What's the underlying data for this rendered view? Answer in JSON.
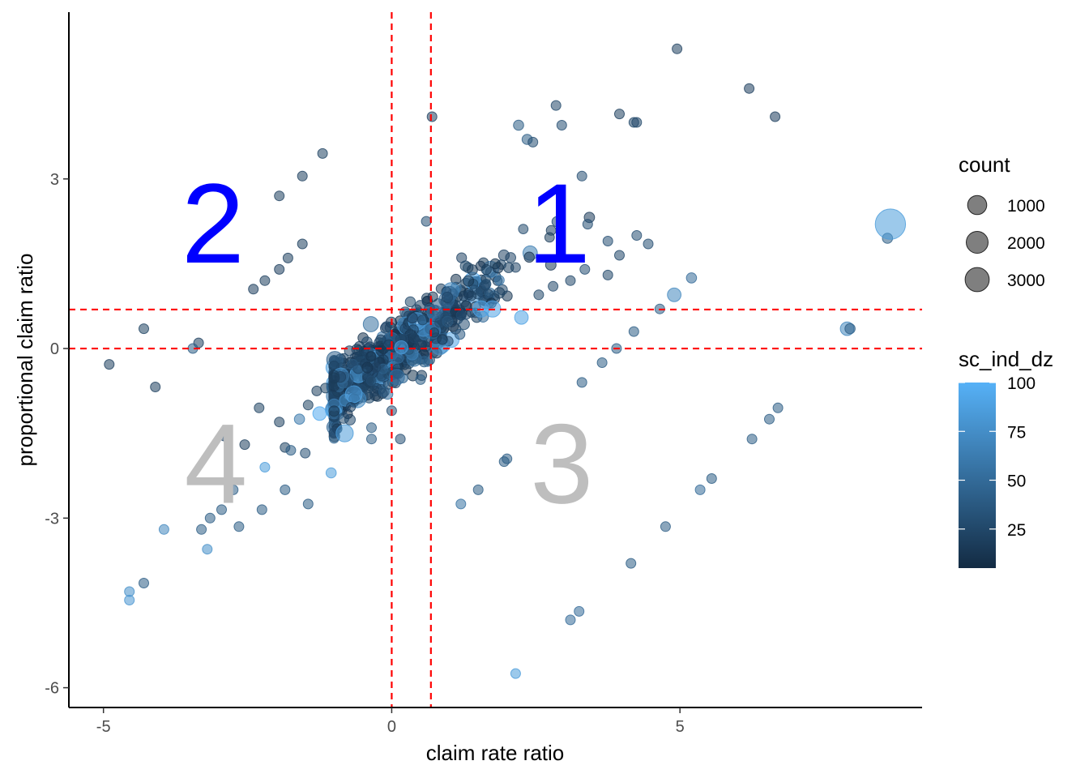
{
  "chart_data": {
    "type": "scatter",
    "xlabel": "claim rate ratio",
    "ylabel": "proportional claim ratio",
    "xlim": [
      -5.6,
      9.2
    ],
    "ylim": [
      -6.35,
      5.95
    ],
    "x_ticks": [
      {
        "value": -5,
        "label": "-5"
      },
      {
        "value": 0,
        "label": "0"
      },
      {
        "value": 5,
        "label": "5"
      }
    ],
    "y_ticks": [
      {
        "value": 3,
        "label": "3"
      },
      {
        "value": 0,
        "label": "0"
      },
      {
        "value": -3,
        "label": "-3"
      },
      {
        "value": -6,
        "label": "-6"
      }
    ],
    "grid": false,
    "reference_lines": {
      "vertical": [
        0,
        0.68
      ],
      "horizontal": [
        0,
        0.69
      ],
      "color": "#ff0000",
      "style": "dashed"
    },
    "quadrant_labels": [
      {
        "text": "1",
        "x": 2.9,
        "y": 2.05,
        "color": "#0000ff"
      },
      {
        "text": "2",
        "x": -3.1,
        "y": 2.05,
        "color": "#0000ff"
      },
      {
        "text": "3",
        "x": 2.95,
        "y": -2.2,
        "color": "#bebebe"
      },
      {
        "text": "4",
        "x": -3.05,
        "y": -2.2,
        "color": "#bebebe"
      }
    ],
    "legend": {
      "position": "right",
      "size_title": "count",
      "size_entries": [
        {
          "label": "1000",
          "value": 1000
        },
        {
          "label": "2000",
          "value": 2000
        },
        {
          "label": "3000",
          "value": 3000
        }
      ],
      "color_title": "sc_ind_dz",
      "color_range": [
        5,
        100
      ],
      "color_low": "#132b43",
      "color_high": "#56b1f7",
      "color_ticks": [
        {
          "value": 100,
          "label": "100"
        },
        {
          "value": 75,
          "label": "75"
        },
        {
          "value": 50,
          "label": "50"
        },
        {
          "value": 25,
          "label": "25"
        }
      ]
    },
    "point_alpha": 0.55,
    "points": [
      [
        4.95,
        5.3,
        20,
        120
      ],
      [
        6.2,
        4.6,
        18,
        120
      ],
      [
        6.65,
        4.1,
        18,
        120
      ],
      [
        -4.9,
        -0.28,
        20,
        120
      ],
      [
        -4.1,
        -0.68,
        20,
        120
      ],
      [
        -4.3,
        0.35,
        22,
        120
      ],
      [
        -3.35,
        0.1,
        20,
        120
      ],
      [
        -3.45,
        0.0,
        40,
        120
      ],
      [
        -1.55,
        3.05,
        20,
        120
      ],
      [
        -1.2,
        3.45,
        22,
        120
      ],
      [
        -1.95,
        2.7,
        20,
        120
      ],
      [
        -1.55,
        1.85,
        20,
        120
      ],
      [
        -1.8,
        1.6,
        20,
        120
      ],
      [
        -1.95,
        1.4,
        18,
        120
      ],
      [
        -2.4,
        1.05,
        18,
        120
      ],
      [
        -2.2,
        1.2,
        20,
        120
      ],
      [
        -2.9,
        -1.55,
        18,
        120
      ],
      [
        -2.3,
        -1.05,
        22,
        120
      ],
      [
        -2.55,
        -1.7,
        20,
        120
      ],
      [
        -1.95,
        -1.3,
        20,
        120
      ],
      [
        -1.85,
        -1.75,
        22,
        120
      ],
      [
        -1.75,
        -1.8,
        40,
        120
      ],
      [
        -1.5,
        -1.85,
        30,
        120
      ],
      [
        -1.45,
        -1.0,
        22,
        120
      ],
      [
        -1.3,
        -0.75,
        20,
        120
      ],
      [
        -1.15,
        -0.7,
        22,
        120
      ],
      [
        -1.45,
        -2.75,
        40,
        120
      ],
      [
        -1.85,
        -2.5,
        40,
        120
      ],
      [
        -2.2,
        -2.1,
        85,
        120
      ],
      [
        -1.05,
        -2.2,
        85,
        150
      ],
      [
        -1.25,
        -1.15,
        95,
        400
      ],
      [
        -1.6,
        -1.25,
        60,
        150
      ],
      [
        -2.25,
        -2.85,
        40,
        120
      ],
      [
        -2.75,
        -2.5,
        40,
        120
      ],
      [
        -2.65,
        -3.15,
        40,
        120
      ],
      [
        -2.95,
        -2.85,
        40,
        120
      ],
      [
        -3.15,
        -3.0,
        40,
        120
      ],
      [
        -3.3,
        -3.2,
        40,
        120
      ],
      [
        -3.2,
        -3.55,
        75,
        120
      ],
      [
        -3.95,
        -3.2,
        70,
        120
      ],
      [
        -4.3,
        -4.15,
        40,
        120
      ],
      [
        -4.55,
        -4.3,
        75,
        120
      ],
      [
        -4.55,
        -4.45,
        80,
        120
      ],
      [
        2.15,
        -5.75,
        85,
        120
      ],
      [
        3.1,
        -4.8,
        50,
        120
      ],
      [
        3.25,
        -4.65,
        50,
        120
      ],
      [
        4.15,
        -3.8,
        40,
        120
      ],
      [
        4.75,
        -3.15,
        40,
        120
      ],
      [
        5.35,
        -2.5,
        50,
        120
      ],
      [
        5.55,
        -2.3,
        40,
        120
      ],
      [
        6.25,
        -1.6,
        40,
        120
      ],
      [
        6.55,
        -1.25,
        40,
        120
      ],
      [
        6.7,
        -1.05,
        40,
        120
      ],
      [
        1.5,
        -2.5,
        40,
        120
      ],
      [
        1.2,
        -2.75,
        55,
        120
      ],
      [
        2.0,
        -1.95,
        40,
        120
      ],
      [
        1.95,
        -2.0,
        40,
        120
      ],
      [
        3.3,
        -0.6,
        40,
        120
      ],
      [
        3.65,
        -0.25,
        40,
        120
      ],
      [
        3.9,
        0.0,
        40,
        120
      ],
      [
        4.2,
        0.3,
        40,
        120
      ],
      [
        4.65,
        0.7,
        40,
        120
      ],
      [
        4.9,
        0.95,
        70,
        400
      ],
      [
        5.2,
        1.25,
        50,
        150
      ],
      [
        7.9,
        0.35,
        70,
        400
      ],
      [
        7.95,
        0.35,
        40,
        150
      ],
      [
        8.6,
        1.95,
        40,
        150
      ],
      [
        8.65,
        2.2,
        85,
        3400
      ],
      [
        0.0,
        -1.1,
        30,
        120
      ],
      [
        0.15,
        -1.6,
        30,
        120
      ],
      [
        -0.35,
        -1.6,
        40,
        120
      ],
      [
        -0.35,
        -1.4,
        40,
        120
      ],
      [
        0.5,
        -0.55,
        40,
        120
      ],
      [
        0.65,
        0.7,
        40,
        120
      ],
      [
        0.6,
        2.25,
        30,
        120
      ],
      [
        0.7,
        4.1,
        20,
        120
      ],
      [
        1.55,
        0.7,
        90,
        700
      ],
      [
        1.75,
        0.7,
        90,
        700
      ],
      [
        2.25,
        0.55,
        90,
        400
      ],
      [
        2.2,
        3.95,
        40,
        150
      ],
      [
        2.35,
        3.7,
        40,
        150
      ],
      [
        2.45,
        3.65,
        30,
        120
      ],
      [
        2.85,
        4.3,
        25,
        120
      ],
      [
        2.95,
        3.95,
        30,
        120
      ],
      [
        3.3,
        3.05,
        30,
        120
      ],
      [
        3.95,
        4.15,
        20,
        120
      ],
      [
        4.2,
        4.0,
        25,
        120
      ],
      [
        4.25,
        4.0,
        25,
        120
      ],
      [
        4.25,
        2.0,
        30,
        120
      ],
      [
        3.4,
        2.2,
        30,
        120
      ],
      [
        3.75,
        1.9,
        30,
        120
      ],
      [
        4.45,
        1.85,
        30,
        120
      ],
      [
        3.95,
        1.65,
        25,
        120
      ],
      [
        3.35,
        1.4,
        30,
        120
      ],
      [
        3.75,
        1.3,
        25,
        120
      ],
      [
        3.1,
        1.2,
        25,
        120
      ],
      [
        2.8,
        1.1,
        25,
        120
      ],
      [
        2.55,
        0.95,
        25,
        120
      ]
    ],
    "cluster": {
      "seed": 7,
      "count": 720,
      "x_range": [
        -1.4,
        3.8
      ],
      "slope": 0.72,
      "intercept": 0.2,
      "spread": 0.55
    }
  }
}
